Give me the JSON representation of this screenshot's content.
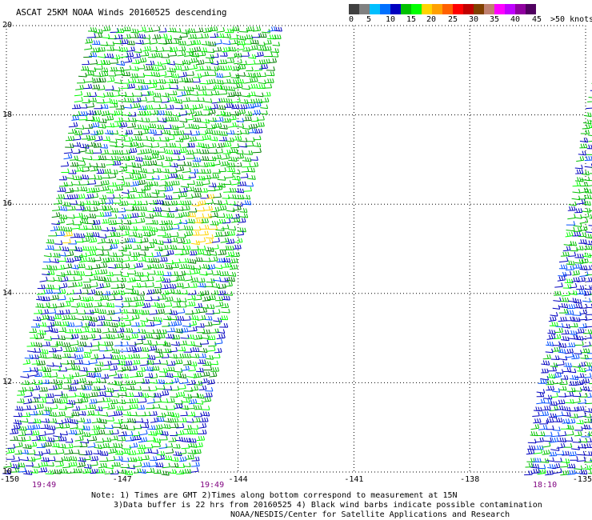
{
  "title": "ASCAT 25KM NOAA Winds 20160525 descending",
  "legend": {
    "colors": [
      "#404040",
      "#808080",
      "#00bfff",
      "#0070ff",
      "#0000c0",
      "#00c000",
      "#00ff00",
      "#ffd400",
      "#ffa000",
      "#ff6000",
      "#ff0000",
      "#c00000",
      "#804000",
      "#c08070",
      "#ff00ff",
      "#c000ff",
      "#9000a0",
      "#500060"
    ],
    "labels": [
      "0",
      "5",
      "10",
      "15",
      "20",
      "25",
      "30",
      "35",
      "40",
      "45",
      ">50 knots"
    ]
  },
  "axes": {
    "latitudes": [
      "10",
      "12",
      "14",
      "16",
      "18",
      "20"
    ],
    "longitudes": [
      "-150",
      "-147",
      "-144",
      "-141",
      "-138",
      "-135"
    ],
    "time_labels": [
      "19:49",
      "19:49",
      "18:10"
    ]
  },
  "notes": [
    "Note: 1) Times are GMT 2)Times along bottom correspond to measurement at 15N",
    "3)Data buffer is 22 hrs from 20160525 4) Black wind barbs indicate possible contamination",
    "NOAA/NESDIS/Center for Satellite Applications and Research"
  ]
}
